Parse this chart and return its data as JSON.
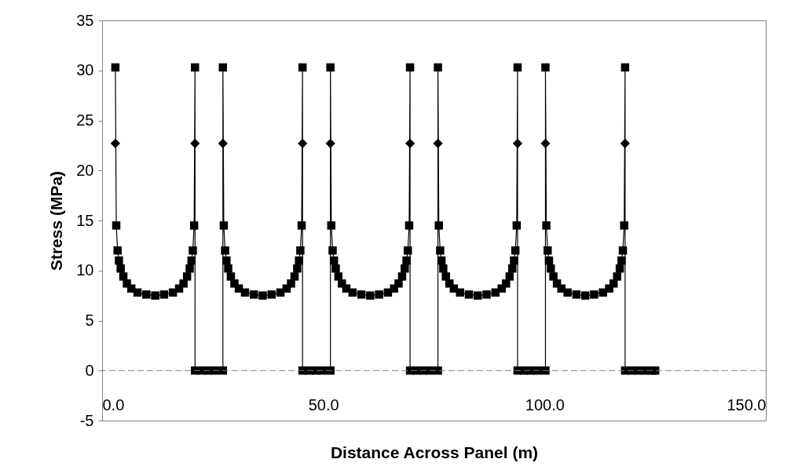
{
  "chart_data": {
    "type": "line",
    "xlabel": "Distance Across Panel (m)",
    "ylabel": "Stress (MPa)",
    "xlim": [
      0,
      150
    ],
    "xticks": [
      {
        "value": 0,
        "label": "0.0"
      },
      {
        "value": 50,
        "label": "50.0"
      },
      {
        "value": 100,
        "label": "100.0"
      },
      {
        "value": 150,
        "label": "150.0"
      }
    ],
    "ylim": [
      -5,
      35
    ],
    "yticks": [
      -5,
      0,
      5,
      10,
      15,
      20,
      25,
      30,
      35
    ],
    "grid": false,
    "ref_lines": [
      {
        "axis": "y",
        "value": 0,
        "color": "#808080",
        "line_style": "dashed"
      }
    ],
    "series": [
      {
        "marker": "square",
        "color": "#000000",
        "x": [
          3,
          3.2,
          3.5,
          3.8,
          4.2,
          4.8,
          5.6,
          6.6,
          8,
          10,
          12,
          14,
          16,
          17.4,
          18.4,
          19.2,
          19.8,
          20.2,
          20.5,
          20.8,
          21,
          21,
          22.5,
          24,
          25.5,
          27.3,
          27.3,
          27.5,
          27.8,
          28.1,
          28.5,
          29.1,
          29.9,
          30.9,
          32.3,
          34.3,
          36.3,
          38.3,
          40.3,
          41.7,
          42.7,
          43.5,
          44.1,
          44.5,
          44.8,
          45.1,
          45.3,
          45.3,
          46.8,
          48.3,
          49.8,
          51.6,
          51.6,
          51.8,
          52.1,
          52.4,
          52.8,
          53.4,
          54.2,
          55.2,
          56.6,
          58.6,
          60.6,
          62.6,
          64.6,
          66,
          67,
          67.8,
          68.4,
          68.8,
          69.1,
          69.4,
          69.6,
          69.6,
          71.1,
          72.6,
          74.1,
          75.9,
          75.9,
          76.1,
          76.4,
          76.7,
          77.1,
          77.7,
          78.5,
          79.5,
          80.9,
          82.9,
          84.9,
          86.9,
          88.9,
          90.3,
          91.3,
          92.1,
          92.7,
          93.1,
          93.4,
          93.7,
          93.9,
          93.9,
          95.4,
          96.9,
          98.4,
          100.2,
          100.2,
          100.4,
          100.7,
          101,
          101.4,
          102,
          102.8,
          103.8,
          105.2,
          107.2,
          109.2,
          111.2,
          113.2,
          114.6,
          115.6,
          116.4,
          117,
          117.4,
          117.7,
          118,
          118.2,
          118.2,
          119.7,
          121.2,
          122.7,
          124.2,
          125
        ],
        "values": [
          30.3,
          14.5,
          12,
          11,
          10.2,
          9.4,
          8.7,
          8.2,
          7.8,
          7.6,
          7.5,
          7.6,
          7.8,
          8.2,
          8.7,
          9.4,
          10.2,
          11,
          12,
          14.5,
          30.3,
          0,
          0,
          0,
          0,
          0,
          30.3,
          14.5,
          12,
          11,
          10.2,
          9.4,
          8.7,
          8.2,
          7.8,
          7.6,
          7.5,
          7.6,
          7.8,
          8.2,
          8.7,
          9.4,
          10.2,
          11,
          12,
          14.5,
          30.3,
          0,
          0,
          0,
          0,
          0,
          30.3,
          14.5,
          12,
          11,
          10.2,
          9.4,
          8.7,
          8.2,
          7.8,
          7.6,
          7.5,
          7.6,
          7.8,
          8.2,
          8.7,
          9.4,
          10.2,
          11,
          12,
          14.5,
          30.3,
          0,
          0,
          0,
          0,
          0,
          30.3,
          14.5,
          12,
          11,
          10.2,
          9.4,
          8.7,
          8.2,
          7.8,
          7.6,
          7.5,
          7.6,
          7.8,
          8.2,
          8.7,
          9.4,
          10.2,
          11,
          12,
          14.5,
          30.3,
          0,
          0,
          0,
          0,
          0,
          30.3,
          14.5,
          12,
          11,
          10.2,
          9.4,
          8.7,
          8.2,
          7.8,
          7.6,
          7.5,
          7.6,
          7.8,
          8.2,
          8.7,
          9.4,
          10.2,
          11,
          12,
          14.5,
          30.3,
          0,
          0,
          0,
          0,
          0,
          0
        ]
      },
      {
        "type": "scatter",
        "marker": "diamond",
        "color": "#000000",
        "x": [
          3,
          21,
          27.3,
          45.3,
          51.6,
          69.6,
          75.9,
          93.9,
          100.2,
          118.2
        ],
        "values": [
          22.7,
          22.7,
          22.7,
          22.7,
          22.7,
          22.7,
          22.7,
          22.7,
          22.7,
          22.7
        ]
      }
    ]
  }
}
